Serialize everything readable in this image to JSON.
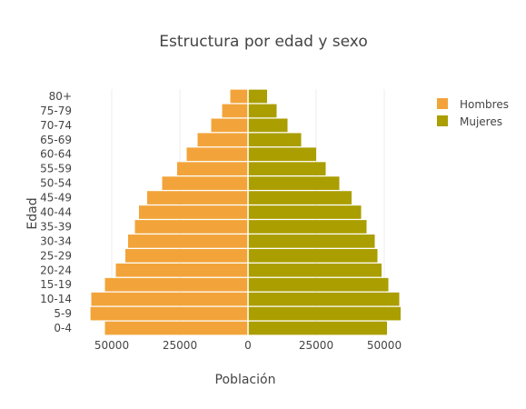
{
  "chart_data": {
    "type": "bar",
    "orientation": "horizontal",
    "barmode": "relative",
    "title": "Estructura por edad y sexo",
    "xlabel": "Población",
    "ylabel": "Edad",
    "categories": [
      "0-4",
      "5-9",
      "10-14",
      "15-19",
      "20-24",
      "25-29",
      "30-34",
      "35-39",
      "40-44",
      "45-49",
      "50-54",
      "55-59",
      "60-64",
      "65-69",
      "70-74",
      "75-79",
      "80+"
    ],
    "series": [
      {
        "name": "Hombres",
        "color": "#f2a43a",
        "values": [
          52500,
          57800,
          57500,
          52500,
          48500,
          45000,
          44000,
          41500,
          40000,
          37000,
          31500,
          26000,
          22500,
          18500,
          13500,
          9500,
          6500
        ],
        "direction": "left"
      },
      {
        "name": "Mujeres",
        "color": "#ab9e00",
        "values": [
          51000,
          56000,
          55500,
          51500,
          49000,
          47500,
          46500,
          43500,
          41500,
          38000,
          33500,
          28500,
          25000,
          19500,
          14500,
          10500,
          7000
        ],
        "direction": "right"
      }
    ],
    "xticks": [
      {
        "value": -50000,
        "label": "50000"
      },
      {
        "value": -25000,
        "label": "25000"
      },
      {
        "value": 0,
        "label": "0"
      },
      {
        "value": 25000,
        "label": "25000"
      },
      {
        "value": 50000,
        "label": "50000"
      }
    ],
    "xlim": [
      -58000,
      58000
    ],
    "grid": "vertical",
    "legend_position": "top-right"
  }
}
